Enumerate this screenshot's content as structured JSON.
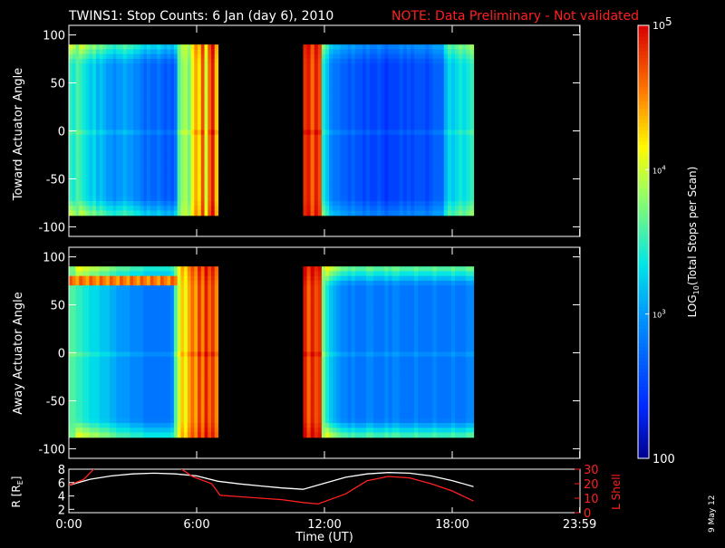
{
  "title": {
    "main": "TWINS1: Stop Counts:  6 Jan (day    6), 2010",
    "note": "NOTE: Data Preliminary - Not validated",
    "note_color": "#ff2020"
  },
  "date_stamp": "9 May 12",
  "colorbar": {
    "label_prefix": "LOG",
    "label_sub": "10",
    "label_suffix": "(Total Stops per Scan)",
    "ticks": [
      {
        "value": 2,
        "base": "",
        "exp": "",
        "plain": "100"
      },
      {
        "value": 3,
        "base": "10",
        "exp": "3",
        "plain": ""
      },
      {
        "value": 4,
        "base": "10",
        "exp": "4",
        "plain": ""
      },
      {
        "value": 5,
        "base": "10",
        "exp": "5",
        "plain": ""
      }
    ],
    "range": [
      2,
      5
    ]
  },
  "chart_data": [
    {
      "type": "heatmap",
      "panel": "toward",
      "ylabel": "Toward Actuator Angle",
      "ylim": [
        -110,
        110
      ],
      "yticks": [
        "100",
        "50",
        "0",
        "-50",
        "-100"
      ],
      "ytick_values": [
        100,
        50,
        0,
        -50,
        -100
      ],
      "xlim_hours": [
        0,
        24
      ],
      "angle_range": [
        -88,
        90
      ],
      "segments": [
        {
          "start": "0:00",
          "end": "7:00",
          "columns_log": [
            3.5,
            3.4,
            3.6,
            3.5,
            3.4,
            3.3,
            3.2,
            3.3,
            3.1,
            3.2,
            3.1,
            3.0,
            3.0,
            2.9,
            3.0,
            3.0,
            3.1,
            3.0,
            3.0,
            2.9,
            2.9,
            2.8,
            2.7,
            2.8,
            2.7,
            2.7,
            2.8,
            2.7,
            2.6,
            2.7,
            2.6,
            2.8,
            3.6,
            3.8,
            3.9,
            3.7,
            4.1,
            4.4,
            4.2,
            4.7,
            4.0,
            4.6,
            4.9,
            4.3
          ],
          "top_bottom_boost": 0.6
        },
        {
          "start": "11:00",
          "end": "19:00",
          "columns_log": [
            4.8,
            4.9,
            4.6,
            4.9,
            4.7,
            3.4,
            3.2,
            2.9,
            2.8,
            2.8,
            2.7,
            2.7,
            2.6,
            2.7,
            2.6,
            2.6,
            2.5,
            2.6,
            2.5,
            2.5,
            2.6,
            2.5,
            2.4,
            2.5,
            2.5,
            2.5,
            2.6,
            2.5,
            2.6,
            2.5,
            2.6,
            2.6,
            2.6,
            2.5,
            2.6,
            2.7,
            2.7,
            2.7,
            3.1,
            3.3,
            3.2,
            3.3,
            3.4,
            3.3,
            3.4,
            3.5
          ],
          "top_bottom_boost": 0.4
        }
      ]
    },
    {
      "type": "heatmap",
      "panel": "away",
      "ylabel": "Away Actuator Angle",
      "ylim": [
        -110,
        110
      ],
      "yticks": [
        "100",
        "50",
        "0",
        "-50",
        "-100"
      ],
      "ytick_values": [
        100,
        50,
        0,
        -50,
        -100
      ],
      "xlim_hours": [
        0,
        24
      ],
      "angle_range": [
        -88,
        90
      ],
      "segments": [
        {
          "start": "0:00",
          "end": "7:00",
          "columns_log": [
            3.6,
            3.6,
            3.5,
            3.5,
            3.4,
            3.4,
            3.3,
            3.3,
            3.3,
            3.2,
            3.2,
            3.2,
            3.1,
            3.1,
            3.0,
            3.0,
            3.0,
            3.0,
            2.9,
            2.9,
            2.9,
            2.9,
            2.8,
            2.8,
            2.8,
            2.8,
            2.8,
            2.8,
            2.8,
            2.8,
            2.9,
            3.6,
            4.0,
            4.3,
            4.1,
            4.4,
            4.6,
            4.4,
            4.8,
            4.5,
            4.9,
            4.6,
            4.8,
            4.5
          ],
          "top_bottom_boost": 0.7,
          "band": {
            "angle": 73,
            "width": 10,
            "log": 4.7
          }
        },
        {
          "start": "11:00",
          "end": "19:00",
          "columns_log": [
            4.9,
            4.6,
            4.9,
            4.7,
            4.8,
            3.7,
            3.4,
            3.2,
            3.1,
            3.0,
            2.9,
            2.9,
            2.8,
            2.9,
            2.8,
            2.8,
            2.8,
            2.9,
            2.9,
            2.8,
            2.8,
            2.8,
            2.9,
            2.8,
            2.9,
            2.9,
            2.8,
            2.8,
            2.8,
            2.8,
            2.9,
            2.8,
            2.8,
            2.8,
            2.8,
            2.9,
            2.8,
            2.8,
            2.8,
            2.8,
            2.9,
            2.8,
            2.8,
            2.8,
            2.9,
            2.9
          ],
          "top_bottom_boost": 0.9,
          "band": {
            "angle": 85,
            "width": 10,
            "log": 3.2
          }
        }
      ]
    },
    {
      "type": "line",
      "panel": "orbit",
      "ylabel_left": "R [R",
      "ylabel_left_sub": "E",
      "ylabel_left_end": "]",
      "ylabel_right": "L Shell",
      "xlabel": "Time (UT)",
      "xtick_labels": [
        "0:00",
        "6:00",
        "12:00",
        "18:00",
        "23:59"
      ],
      "xtick_hours": [
        0,
        6,
        12,
        18,
        23.983
      ],
      "ylim_left": [
        1.5,
        8
      ],
      "yticks_left": [
        "2",
        "4",
        "6",
        "8"
      ],
      "ytick_left_values": [
        2,
        4,
        6,
        8
      ],
      "ylim_right": [
        0,
        30
      ],
      "yticks_right": [
        "0",
        "10",
        "20",
        "30"
      ],
      "ytick_right_values": [
        0,
        10,
        20,
        30
      ],
      "series": [
        {
          "axis": "left",
          "color": "#ffffff",
          "x": [
            0,
            1,
            2,
            3,
            4,
            5,
            6,
            7,
            8,
            9,
            10,
            11,
            12,
            13,
            14,
            15,
            16,
            17,
            18,
            19
          ],
          "y": [
            5.6,
            6.5,
            7.0,
            7.3,
            7.4,
            7.3,
            7.0,
            6.2,
            5.8,
            5.5,
            5.2,
            5.0,
            5.9,
            6.8,
            7.3,
            7.5,
            7.4,
            7.0,
            6.3,
            5.4
          ]
        },
        {
          "axis": "right",
          "color": "#ff2020",
          "x": [
            0,
            0.7,
            1.3,
            5.1,
            5.8,
            6.7,
            7.1,
            9.0,
            10.0,
            11.0,
            11.7,
            13.0,
            14.0,
            15.0,
            16.0,
            17.0,
            18.0,
            19.0
          ],
          "y": [
            19,
            23,
            32,
            32,
            25,
            20,
            12,
            10,
            9,
            7,
            6,
            13,
            22,
            25,
            24,
            20,
            15,
            8
          ]
        }
      ]
    }
  ]
}
